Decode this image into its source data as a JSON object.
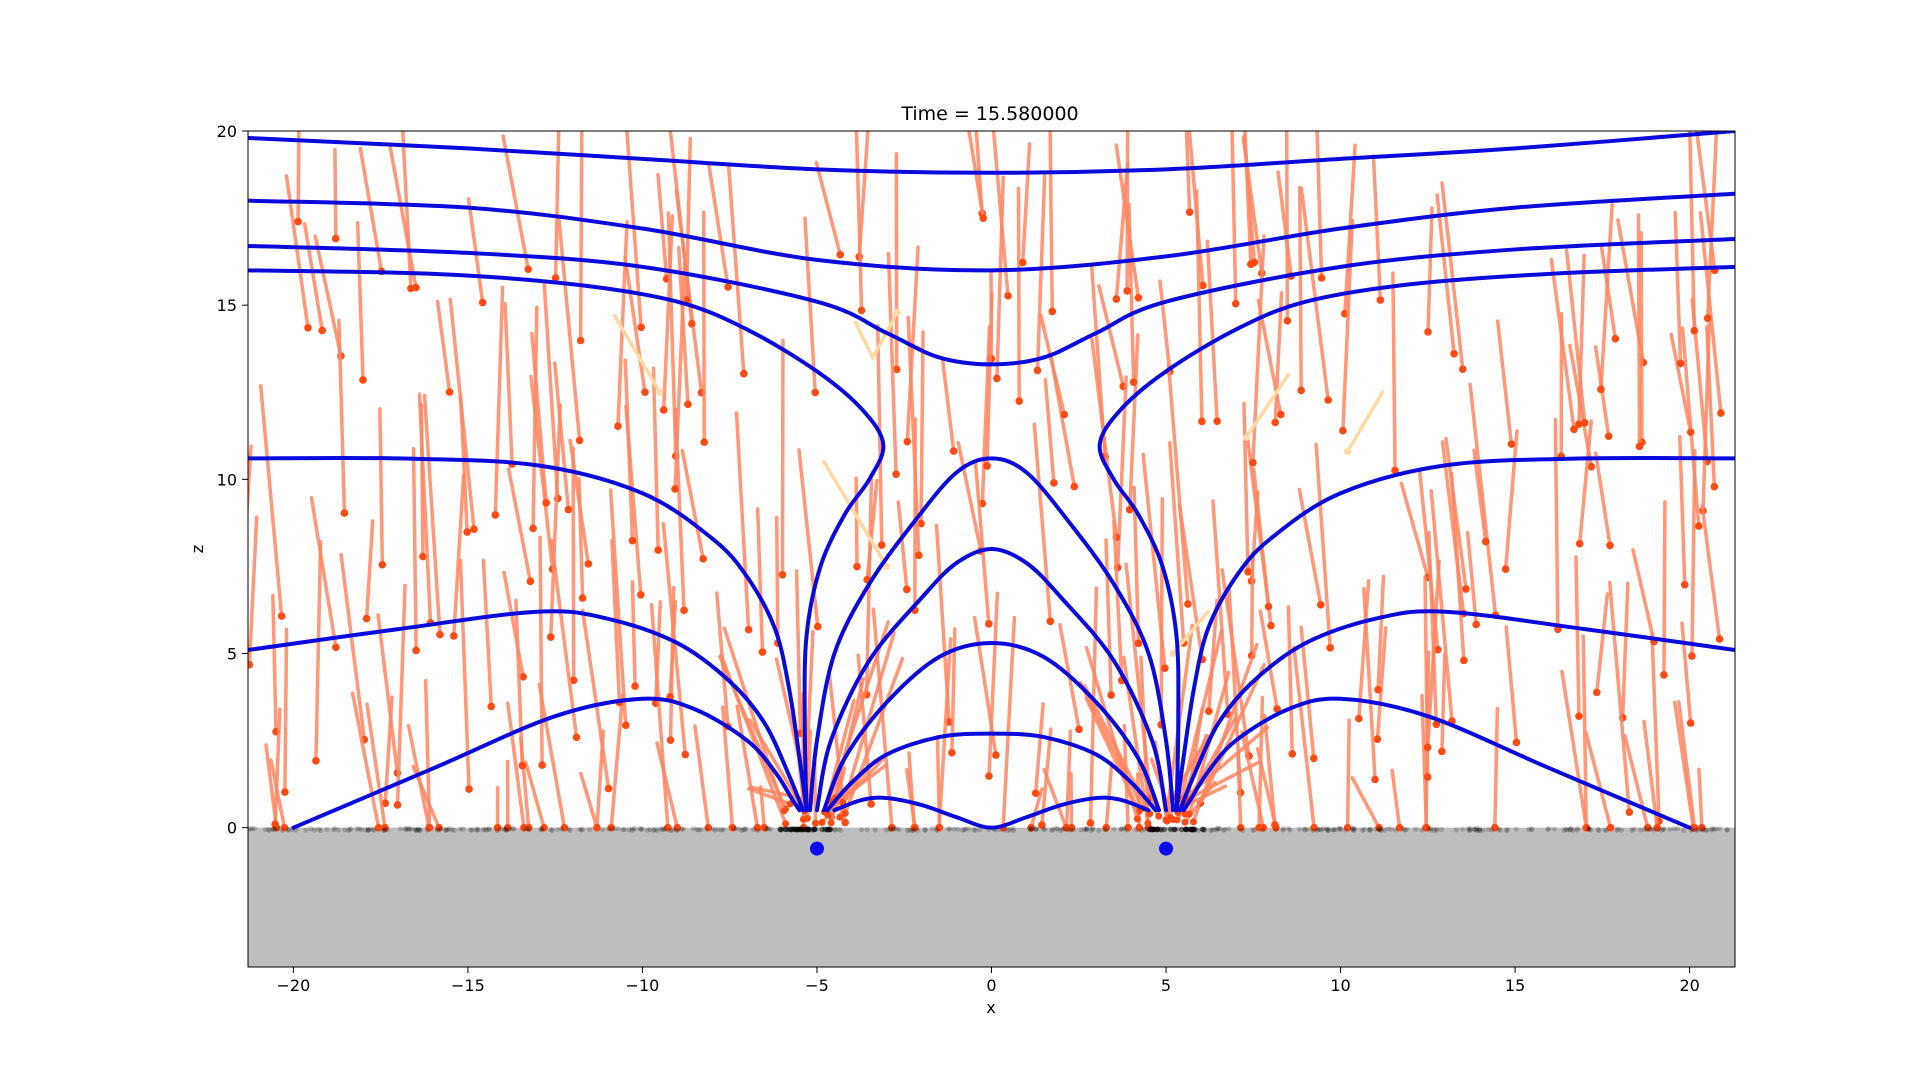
{
  "chart_data": {
    "type": "line",
    "title": "Time = 15.580000",
    "xlabel": "x",
    "ylabel": "z",
    "xlim": [
      -21.3,
      21.3
    ],
    "ylim": [
      -4,
      20
    ],
    "x_ticks": [
      "−20",
      "−15",
      "−10",
      "−5",
      "0",
      "5",
      "10",
      "15",
      "20"
    ],
    "x_tick_values": [
      -20,
      -15,
      -10,
      -5,
      0,
      5,
      10,
      15,
      20
    ],
    "y_ticks": [
      "0",
      "5",
      "10",
      "15",
      "20"
    ],
    "y_tick_values": [
      0,
      5,
      10,
      15,
      20
    ],
    "grid": false,
    "legend": "none",
    "ground_surface_z": 0,
    "ground_color": "#bebebe",
    "field_line_color": "#0a0adc",
    "trail_color": "#ff8560",
    "head_color": "#ff4a12",
    "faint_trail_color": "#ffd9a0",
    "source_color": "#0a0af0",
    "sources": [
      {
        "x": -5,
        "z": -0.6
      },
      {
        "x": 5,
        "z": -0.6
      }
    ],
    "field_lines": [
      [
        [
          -21.3,
          19.8
        ],
        [
          -15,
          19.5
        ],
        [
          -10,
          19.2
        ],
        [
          -5,
          18.9
        ],
        [
          0,
          18.8
        ],
        [
          5,
          18.9
        ],
        [
          10,
          19.2
        ],
        [
          15,
          19.5
        ],
        [
          21.3,
          20.0
        ]
      ],
      [
        [
          -21.3,
          18.0
        ],
        [
          -15,
          17.8
        ],
        [
          -10,
          17.2
        ],
        [
          -5,
          16.3
        ],
        [
          0,
          16.0
        ],
        [
          5,
          16.4
        ],
        [
          10,
          17.2
        ],
        [
          15,
          17.8
        ],
        [
          21.3,
          18.2
        ]
      ],
      [
        [
          -21.3,
          16.7
        ],
        [
          -15,
          16.5
        ],
        [
          -10,
          16.1
        ],
        [
          -5,
          15.1
        ],
        [
          -3,
          14.2
        ],
        [
          -1.5,
          13.5
        ],
        [
          0,
          13.3
        ],
        [
          1.5,
          13.5
        ],
        [
          3,
          14.2
        ],
        [
          5,
          15.1
        ],
        [
          10,
          16.1
        ],
        [
          15,
          16.6
        ],
        [
          21.3,
          16.9
        ]
      ],
      [
        [
          -21.3,
          16.0
        ],
        [
          -16,
          15.9
        ],
        [
          -12,
          15.6
        ],
        [
          -9,
          15.1
        ],
        [
          -7,
          14.3
        ],
        [
          -5,
          13.1
        ],
        [
          -3.7,
          12.0
        ],
        [
          -3.1,
          11.0
        ],
        [
          -3.5,
          10.0
        ],
        [
          -4.2,
          9.0
        ],
        [
          -4.9,
          7.5
        ],
        [
          -5.3,
          5.5
        ],
        [
          -5.35,
          3.0
        ],
        [
          -5.3,
          0.5
        ]
      ],
      [
        [
          5.3,
          0.5
        ],
        [
          5.35,
          3.0
        ],
        [
          5.3,
          5.5
        ],
        [
          4.9,
          7.5
        ],
        [
          4.2,
          9.0
        ],
        [
          3.5,
          10.0
        ],
        [
          3.1,
          11.0
        ],
        [
          3.7,
          12.0
        ],
        [
          5,
          13.1
        ],
        [
          7,
          14.3
        ],
        [
          9,
          15.1
        ],
        [
          12,
          15.6
        ],
        [
          16,
          15.9
        ],
        [
          21.3,
          16.1
        ]
      ],
      [
        [
          -21.3,
          10.6
        ],
        [
          -17,
          10.6
        ],
        [
          -13,
          10.4
        ],
        [
          -10,
          9.6
        ],
        [
          -8,
          8.3
        ],
        [
          -7,
          7.2
        ],
        [
          -6.2,
          5.7
        ],
        [
          -5.8,
          4.0
        ],
        [
          -5.5,
          2.0
        ],
        [
          -5.3,
          0.5
        ]
      ],
      [
        [
          5.3,
          0.5
        ],
        [
          5.5,
          2.0
        ],
        [
          5.8,
          4.0
        ],
        [
          6.2,
          5.7
        ],
        [
          7,
          7.2
        ],
        [
          8,
          8.3
        ],
        [
          10,
          9.6
        ],
        [
          13,
          10.4
        ],
        [
          17,
          10.6
        ],
        [
          21.3,
          10.6
        ]
      ],
      [
        [
          -21.3,
          5.1
        ],
        [
          -17,
          5.7
        ],
        [
          -13,
          6.2
        ],
        [
          -11,
          6.0
        ],
        [
          -9,
          5.3
        ],
        [
          -7.5,
          4.2
        ],
        [
          -6.5,
          3.0
        ],
        [
          -5.8,
          1.5
        ],
        [
          -5.4,
          0.5
        ]
      ],
      [
        [
          5.4,
          0.5
        ],
        [
          5.8,
          1.5
        ],
        [
          6.5,
          3.0
        ],
        [
          7.5,
          4.2
        ],
        [
          9,
          5.3
        ],
        [
          11,
          6.0
        ],
        [
          13,
          6.2
        ],
        [
          17,
          5.7
        ],
        [
          21.3,
          5.1
        ]
      ],
      [
        [
          -20,
          0.0
        ],
        [
          -16,
          1.7
        ],
        [
          -12.5,
          3.2
        ],
        [
          -10,
          3.7
        ],
        [
          -8.5,
          3.4
        ],
        [
          -7,
          2.5
        ],
        [
          -6.2,
          1.6
        ],
        [
          -5.7,
          0.8
        ],
        [
          -5.5,
          0.5
        ]
      ],
      [
        [
          5.5,
          0.5
        ],
        [
          5.7,
          0.8
        ],
        [
          6.2,
          1.6
        ],
        [
          7,
          2.5
        ],
        [
          8.5,
          3.4
        ],
        [
          10,
          3.7
        ],
        [
          12.5,
          3.2
        ],
        [
          16,
          1.7
        ],
        [
          20,
          0.0
        ]
      ],
      [
        [
          -5.2,
          0.5
        ],
        [
          -5.0,
          2.5
        ],
        [
          -4.5,
          5.0
        ],
        [
          -3.5,
          7.0
        ],
        [
          -2.2,
          8.8
        ],
        [
          -1,
          10.2
        ],
        [
          0,
          10.6
        ],
        [
          1,
          10.2
        ],
        [
          2.2,
          8.8
        ],
        [
          3.5,
          7.0
        ],
        [
          4.5,
          5.0
        ],
        [
          5.0,
          2.5
        ],
        [
          5.2,
          0.5
        ]
      ],
      [
        [
          -5.0,
          0.5
        ],
        [
          -4.6,
          2.5
        ],
        [
          -3.5,
          4.8
        ],
        [
          -2.0,
          6.6
        ],
        [
          -1,
          7.6
        ],
        [
          0,
          8.0
        ],
        [
          1,
          7.6
        ],
        [
          2.0,
          6.6
        ],
        [
          3.5,
          4.8
        ],
        [
          4.6,
          2.5
        ],
        [
          5.0,
          0.5
        ]
      ],
      [
        [
          -4.8,
          0.5
        ],
        [
          -4.2,
          2.0
        ],
        [
          -3.0,
          3.6
        ],
        [
          -1.5,
          4.9
        ],
        [
          0,
          5.3
        ],
        [
          1.5,
          4.9
        ],
        [
          3.0,
          3.6
        ],
        [
          4.2,
          2.0
        ],
        [
          4.8,
          0.5
        ]
      ],
      [
        [
          -4.7,
          0.5
        ],
        [
          -4.0,
          1.3
        ],
        [
          -3.0,
          2.1
        ],
        [
          -1.5,
          2.6
        ],
        [
          0,
          2.7
        ],
        [
          1.5,
          2.6
        ],
        [
          3.0,
          2.1
        ],
        [
          4.0,
          1.3
        ],
        [
          4.7,
          0.5
        ]
      ],
      [
        [
          -4.5,
          0.5
        ],
        [
          -3.7,
          0.8
        ],
        [
          -3.0,
          0.85
        ],
        [
          -2,
          0.65
        ],
        [
          -1,
          0.3
        ],
        [
          0,
          0.0
        ],
        [
          1,
          0.3
        ],
        [
          2,
          0.65
        ],
        [
          3.0,
          0.85
        ],
        [
          3.7,
          0.8
        ],
        [
          4.5,
          0.5
        ]
      ]
    ]
  }
}
